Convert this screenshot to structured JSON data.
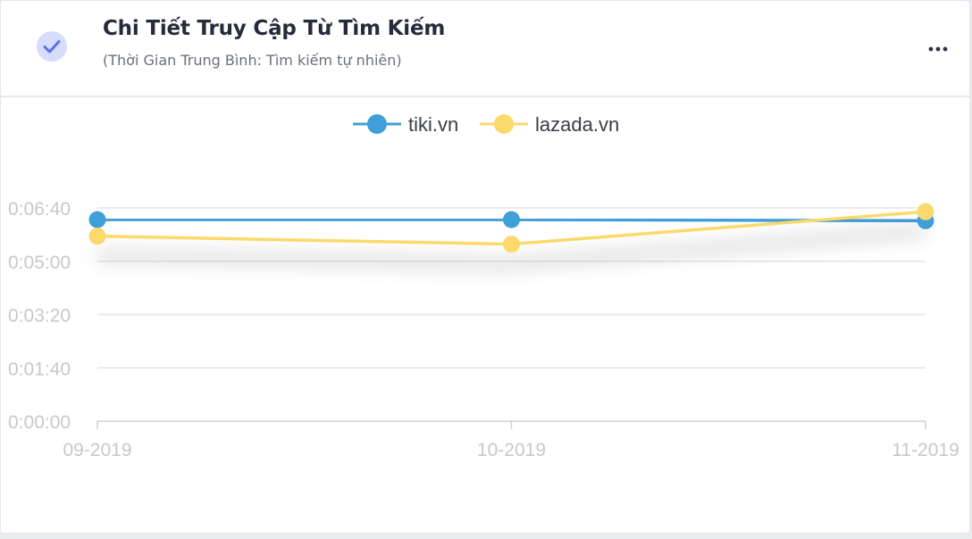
{
  "card": {
    "title": "Chi Tiết Truy Cập Từ Tìm Kiếm",
    "subtitle": "(Thời Gian Trung Bình: Tìm kiếm tự nhiên)",
    "check_icon": "check-icon",
    "menu_icon": "more-horizontal-icon",
    "accent_color": "#5b6ef0"
  },
  "chart_data": {
    "type": "line",
    "title": "",
    "xlabel": "",
    "ylabel": "",
    "categories": [
      "09-2019",
      "10-2019",
      "11-2019"
    ],
    "y_unit": "seconds",
    "ylim": [
      0,
      400
    ],
    "y_ticks": [
      0,
      100,
      200,
      300,
      400
    ],
    "y_tick_labels": [
      "0:00:00",
      "0:01:40",
      "0:03:20",
      "0:05:00",
      "0:06:40"
    ],
    "grid": true,
    "legend_position": "top-center",
    "series": [
      {
        "name": "tiki.vn",
        "color": "#3f9fd8",
        "values": [
          378,
          378,
          376
        ]
      },
      {
        "name": "lazada.vn",
        "color": "#fbd96b",
        "values": [
          347,
          332,
          393
        ]
      }
    ]
  }
}
